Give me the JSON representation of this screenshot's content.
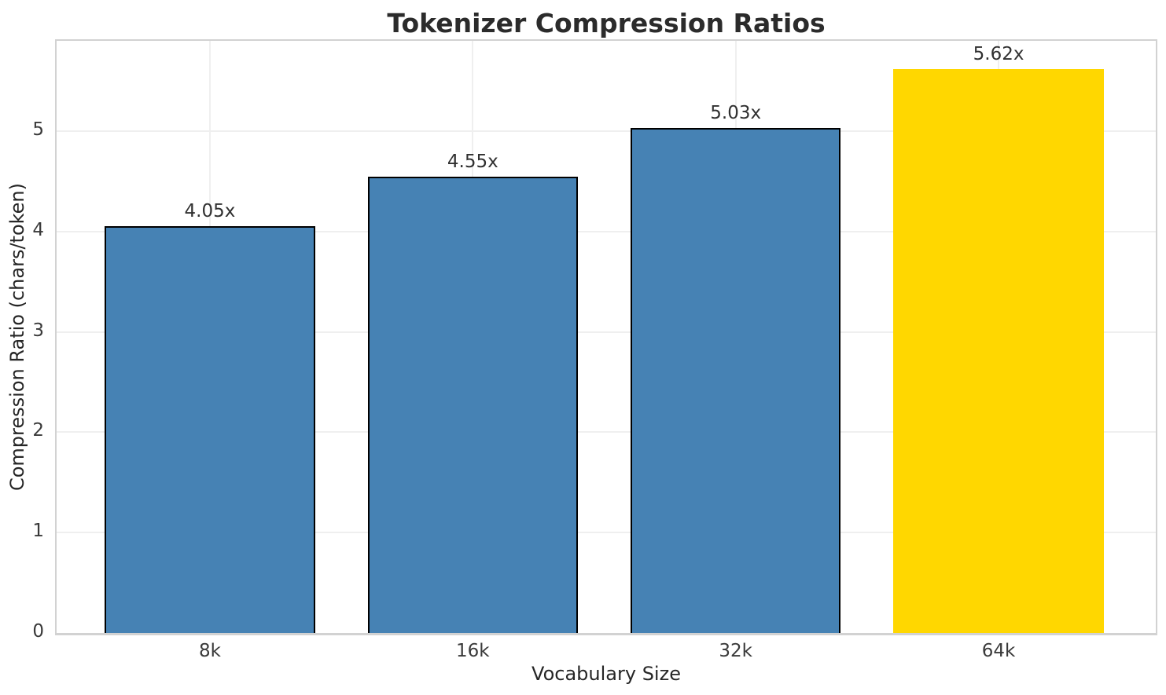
{
  "figure": {
    "background": "#ffffff"
  },
  "chart_data": {
    "type": "bar",
    "title": "Tokenizer Compression Ratios",
    "xlabel": "Vocabulary Size",
    "ylabel": "Compression Ratio (chars/token)",
    "categories": [
      "8k",
      "16k",
      "32k",
      "64k"
    ],
    "values": [
      4.05,
      4.55,
      5.03,
      5.62
    ],
    "bar_labels": [
      "4.05x",
      "4.55x",
      "5.03x",
      "5.62x"
    ],
    "bar_colors": [
      "#4682b4",
      "#4682b4",
      "#4682b4",
      "#ffd700"
    ],
    "bar_edge_colors": [
      "#000000",
      "#000000",
      "#000000",
      "none"
    ],
    "yticks": [
      0,
      1,
      2,
      3,
      4,
      5
    ],
    "ylim": [
      0,
      5.9
    ],
    "xlim": [
      -0.583,
      3.598
    ],
    "bar_width": 0.8,
    "grid": "both",
    "legend": "none",
    "colors": {
      "grid": "#efefef",
      "spine": "#d2d2d2",
      "text": "#262626",
      "title": "#2b2b2b",
      "highlight": "#ffd700",
      "default_bar": "#4682b4"
    }
  }
}
